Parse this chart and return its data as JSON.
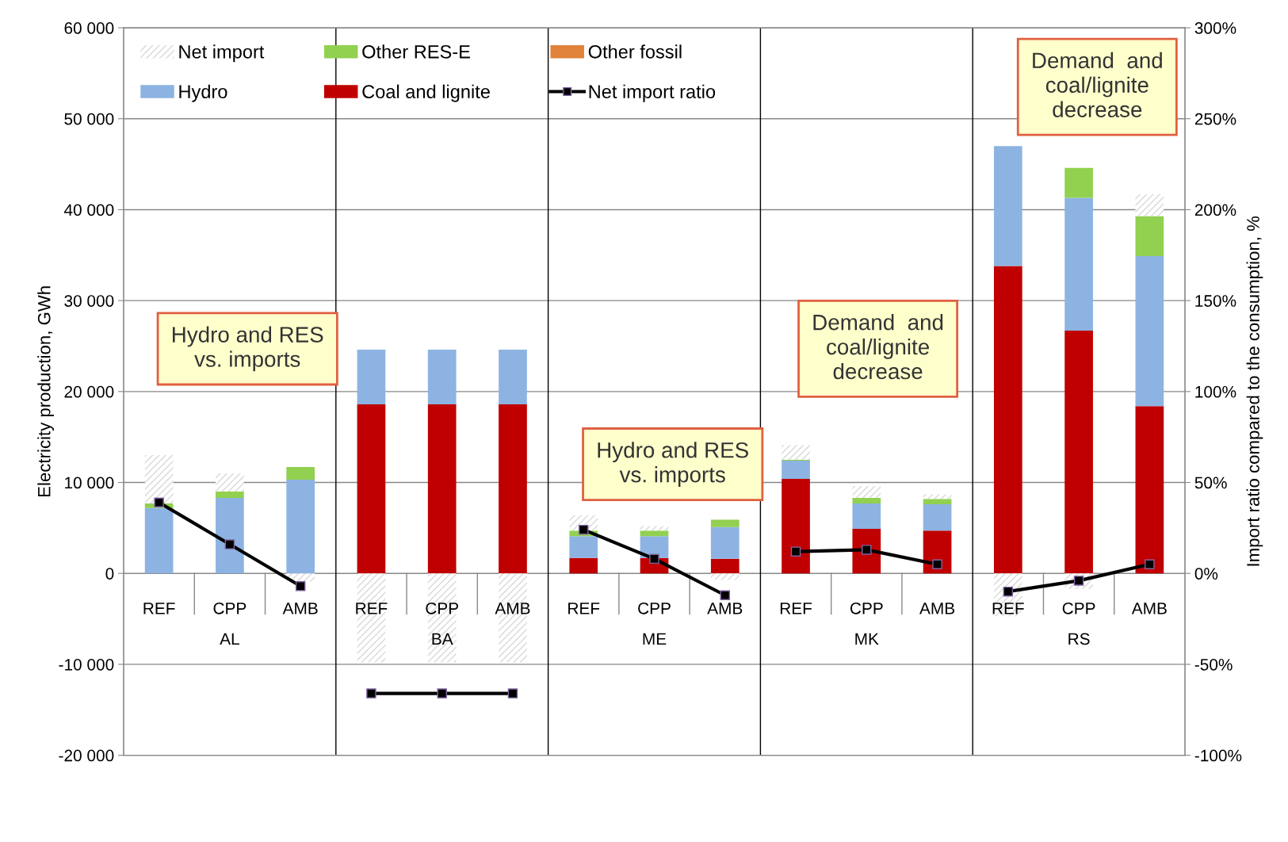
{
  "chart_data": {
    "type": "bar",
    "stacked": true,
    "categories": [
      "REF",
      "CPP",
      "AMB",
      "REF",
      "CPP",
      "AMB",
      "REF",
      "CPP",
      "AMB",
      "REF",
      "CPP",
      "AMB",
      "REF",
      "CPP",
      "AMB"
    ],
    "series": [
      {
        "name": "Coal and lignite",
        "color": "#c00000",
        "values": [
          0,
          0,
          0,
          18600,
          18600,
          18600,
          1700,
          1700,
          1600,
          10400,
          4900,
          4700,
          33800,
          26700,
          18400
        ]
      },
      {
        "name": "Hydro",
        "color": "#8db3e2",
        "values": [
          7200,
          8300,
          10300,
          6000,
          6000,
          6000,
          2400,
          2400,
          3500,
          2000,
          2800,
          2900,
          13200,
          14600,
          16500
        ]
      },
      {
        "name": "Other fossil",
        "color": "#e0823a",
        "values": [
          0,
          0,
          0,
          0,
          0,
          0,
          0,
          0,
          0,
          0,
          0,
          0,
          0,
          0,
          0
        ]
      },
      {
        "name": "Other RES-E",
        "color": "#92d050",
        "values": [
          500,
          700,
          1400,
          0,
          0,
          0,
          600,
          600,
          800,
          100,
          600,
          600,
          0,
          3300,
          4400
        ]
      },
      {
        "name": "Net import",
        "color": "#d9d9d9",
        "values": [
          5300,
          2000,
          -900,
          -9800,
          -9800,
          -9800,
          1700,
          500,
          -700,
          1600,
          1300,
          500,
          -4700,
          -1700,
          2400
        ]
      },
      {
        "name": "Net import ratio",
        "type": "line",
        "axis": "y2",
        "color": "#000000",
        "values": [
          39,
          16,
          -7,
          -66,
          -66,
          -66,
          24,
          8,
          -12,
          12,
          13,
          5,
          -10,
          -4,
          5
        ]
      }
    ],
    "ylabel": "Electricity production, GWh",
    "y2label": "Import ratio compared to the consumption, %",
    "ylim": [
      -20000,
      60000
    ],
    "yticks": [
      {
        "value": -20000,
        "label": "-20 000"
      },
      {
        "value": -10000,
        "label": "-10 000"
      },
      0,
      {
        "value": 10000,
        "label": "10 000"
      },
      {
        "value": 20000,
        "label": "20 000"
      },
      {
        "value": 30000,
        "label": "30 000"
      },
      {
        "value": 40000,
        "label": "40 000"
      },
      {
        "value": 50000,
        "label": "50 000"
      },
      {
        "value": 60000,
        "label": "60 000"
      }
    ],
    "y2lim": [
      -100,
      300
    ],
    "y2ticks": [
      {
        "value": -100,
        "label": "-100%"
      },
      {
        "value": -50,
        "label": "-50%"
      },
      {
        "value": 0,
        "label": "0%"
      },
      {
        "value": 50,
        "label": "50%"
      },
      {
        "value": 100,
        "label": "100%"
      },
      {
        "value": 150,
        "label": "150%"
      },
      {
        "value": 200,
        "label": "200%"
      },
      {
        "value": 250,
        "label": "250%"
      },
      {
        "value": 300,
        "label": "300%"
      }
    ],
    "annotations": [
      "AL",
      "BA",
      "ME",
      "MK",
      "RS",
      "Hydro and RES\nvs. imports",
      "Hydro and RES\nvs. imports",
      "Demand  and\ncoal/lignite\ndecrease",
      "Demand  and\ncoal/lignite\ndecrease"
    ],
    "grid": "y",
    "legend": "top left",
    "marker": "square",
    "line_style": "solid"
  }
}
